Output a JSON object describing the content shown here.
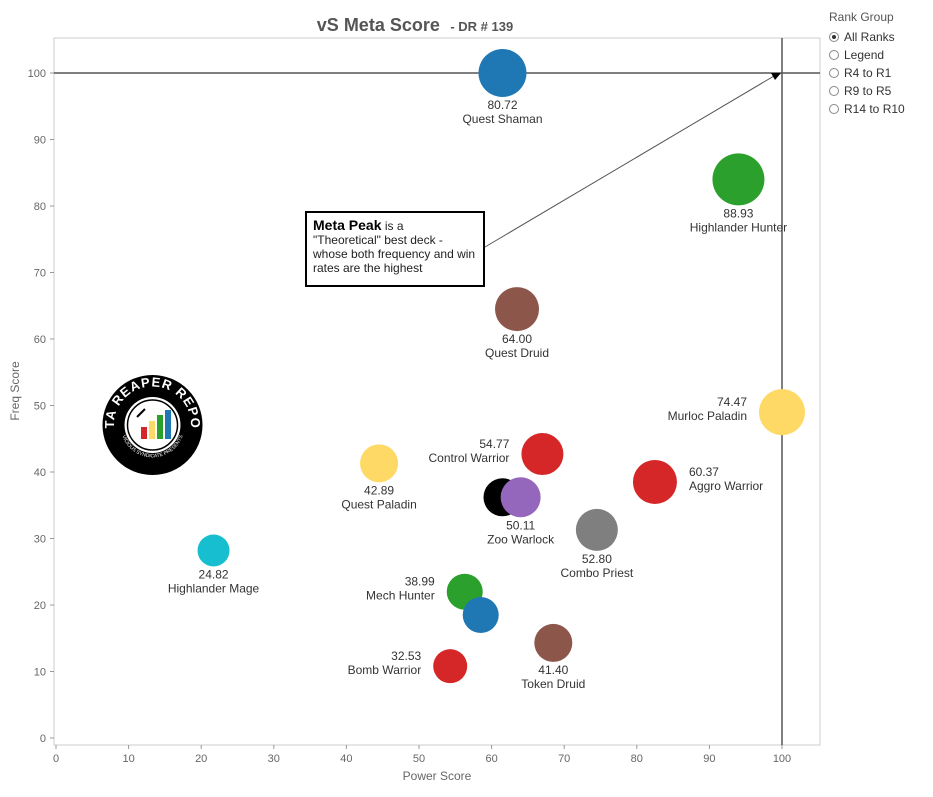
{
  "title": {
    "main": "vS Meta Score",
    "sub": "- DR # 139"
  },
  "legend": {
    "title": "Rank Group",
    "selected": "All Ranks",
    "options": [
      "All Ranks",
      "Legend",
      "R4 to R1",
      "R9 to R5",
      "R14 to R10"
    ]
  },
  "annotation": {
    "heading": "Meta Peak",
    "heading_suffix": " is a",
    "body": "\"Theoretical\" best deck - whose both frequency and win rates are the highest"
  },
  "logo": {
    "text_top": "DATA REAPER REPORT",
    "text_bottom": "VICIOUS SYNDICATE PRESENTS"
  },
  "colors": {
    "blue": "#1f77b4",
    "green": "#2ca02c",
    "brown": "#8c564b",
    "yellow": "#ffd966",
    "red": "#d62728",
    "black": "#000000",
    "purple": "#9467bd",
    "gray": "#7f7f7f",
    "cyan": "#17becf"
  },
  "chart_data": {
    "type": "scatter",
    "title": "vS Meta Score - DR # 139",
    "xlabel": "Power Score",
    "ylabel": "Freq Score",
    "xlim": [
      0,
      105
    ],
    "ylim": [
      -1,
      105
    ],
    "x_ticks": [
      0,
      10,
      20,
      30,
      40,
      50,
      60,
      70,
      80,
      90,
      100
    ],
    "y_ticks": [
      0,
      10,
      20,
      30,
      40,
      50,
      60,
      70,
      80,
      90,
      100
    ],
    "reference_lines": {
      "x": 100,
      "y": 100
    },
    "points": [
      {
        "name": "Quest Shaman",
        "score": "80.72",
        "x": 61.5,
        "y": 100,
        "color": "blue",
        "size": 24,
        "label_pos": "below"
      },
      {
        "name": "Highlander Hunter",
        "score": "88.93",
        "x": 94,
        "y": 84,
        "color": "green",
        "size": 26,
        "label_pos": "below"
      },
      {
        "name": "Quest Druid",
        "score": "64.00",
        "x": 63.5,
        "y": 64.5,
        "color": "brown",
        "size": 22,
        "label_pos": "below"
      },
      {
        "name": "Murloc Paladin",
        "score": "74.47",
        "x": 100,
        "y": 49,
        "color": "yellow",
        "size": 23,
        "label_pos": "left"
      },
      {
        "name": "Control Warrior",
        "score": "54.77",
        "x": 67,
        "y": 42.7,
        "color": "red",
        "size": 21,
        "label_pos": "left"
      },
      {
        "name": "Aggro Warrior",
        "score": "60.37",
        "x": 82.5,
        "y": 38.5,
        "color": "red",
        "size": 22,
        "label_pos": "right"
      },
      {
        "name": "Quest Paladin",
        "score": "42.89",
        "x": 44.5,
        "y": 41.3,
        "color": "yellow",
        "size": 19,
        "label_pos": "below"
      },
      {
        "name": "",
        "score": "",
        "x": 61.5,
        "y": 36.2,
        "color": "black",
        "size": 19,
        "label_pos": "none"
      },
      {
        "name": "Zoo Warlock",
        "score": "50.11",
        "x": 64,
        "y": 36.2,
        "color": "purple",
        "size": 20,
        "label_pos": "below"
      },
      {
        "name": "Combo Priest",
        "score": "52.80",
        "x": 74.5,
        "y": 31.3,
        "color": "gray",
        "size": 21,
        "label_pos": "below"
      },
      {
        "name": "Highlander Mage",
        "score": "24.82",
        "x": 21.7,
        "y": 28.2,
        "color": "cyan",
        "size": 16,
        "label_pos": "below"
      },
      {
        "name": "Mech Hunter",
        "score": "38.99",
        "x": 56.3,
        "y": 22,
        "color": "green",
        "size": 18,
        "label_pos": "left"
      },
      {
        "name": "",
        "score": "",
        "x": 58.5,
        "y": 18.5,
        "color": "blue",
        "size": 18,
        "label_pos": "none"
      },
      {
        "name": "Bomb Warrior",
        "score": "32.53",
        "x": 54.3,
        "y": 10.8,
        "color": "red",
        "size": 17,
        "label_pos": "left"
      },
      {
        "name": "Token Druid",
        "score": "41.40",
        "x": 68.5,
        "y": 14.3,
        "color": "brown",
        "size": 19,
        "label_pos": "below"
      }
    ]
  }
}
